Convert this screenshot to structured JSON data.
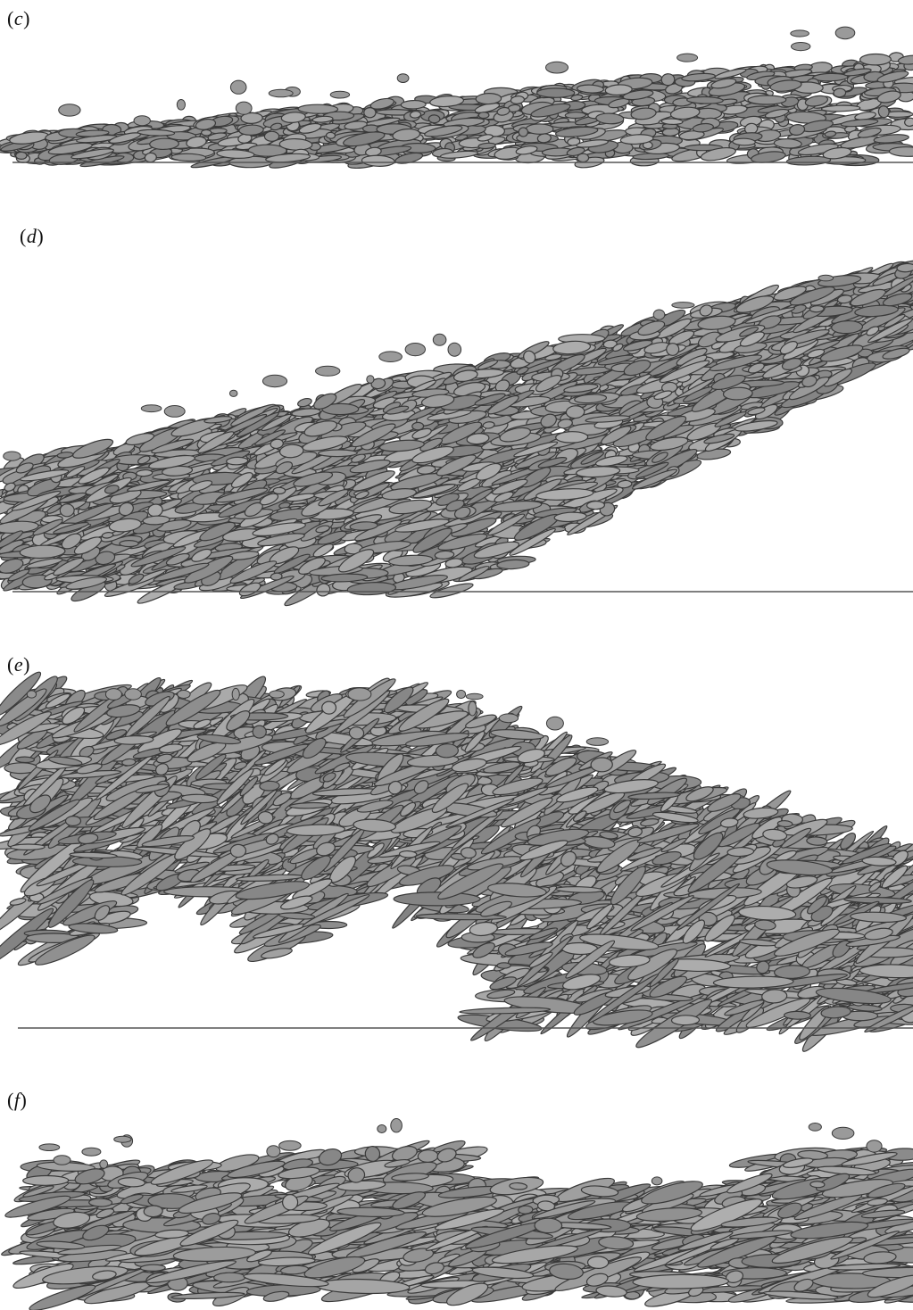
{
  "panels": [
    {
      "id": "c",
      "label_open": "(",
      "label_letter": "c",
      "label_close": ")"
    },
    {
      "id": "d",
      "label_open": "(",
      "label_letter": "d",
      "label_close": ")"
    },
    {
      "id": "e",
      "label_open": "(",
      "label_letter": "e",
      "label_close": ")"
    },
    {
      "id": "f",
      "label_open": "(",
      "label_letter": "f",
      "label_close": ")"
    }
  ],
  "colors": {
    "structure_fill": "#9a9a9a",
    "structure_edge": "#3a3a3a",
    "baseline": "#555555",
    "background": "#ffffff"
  }
}
